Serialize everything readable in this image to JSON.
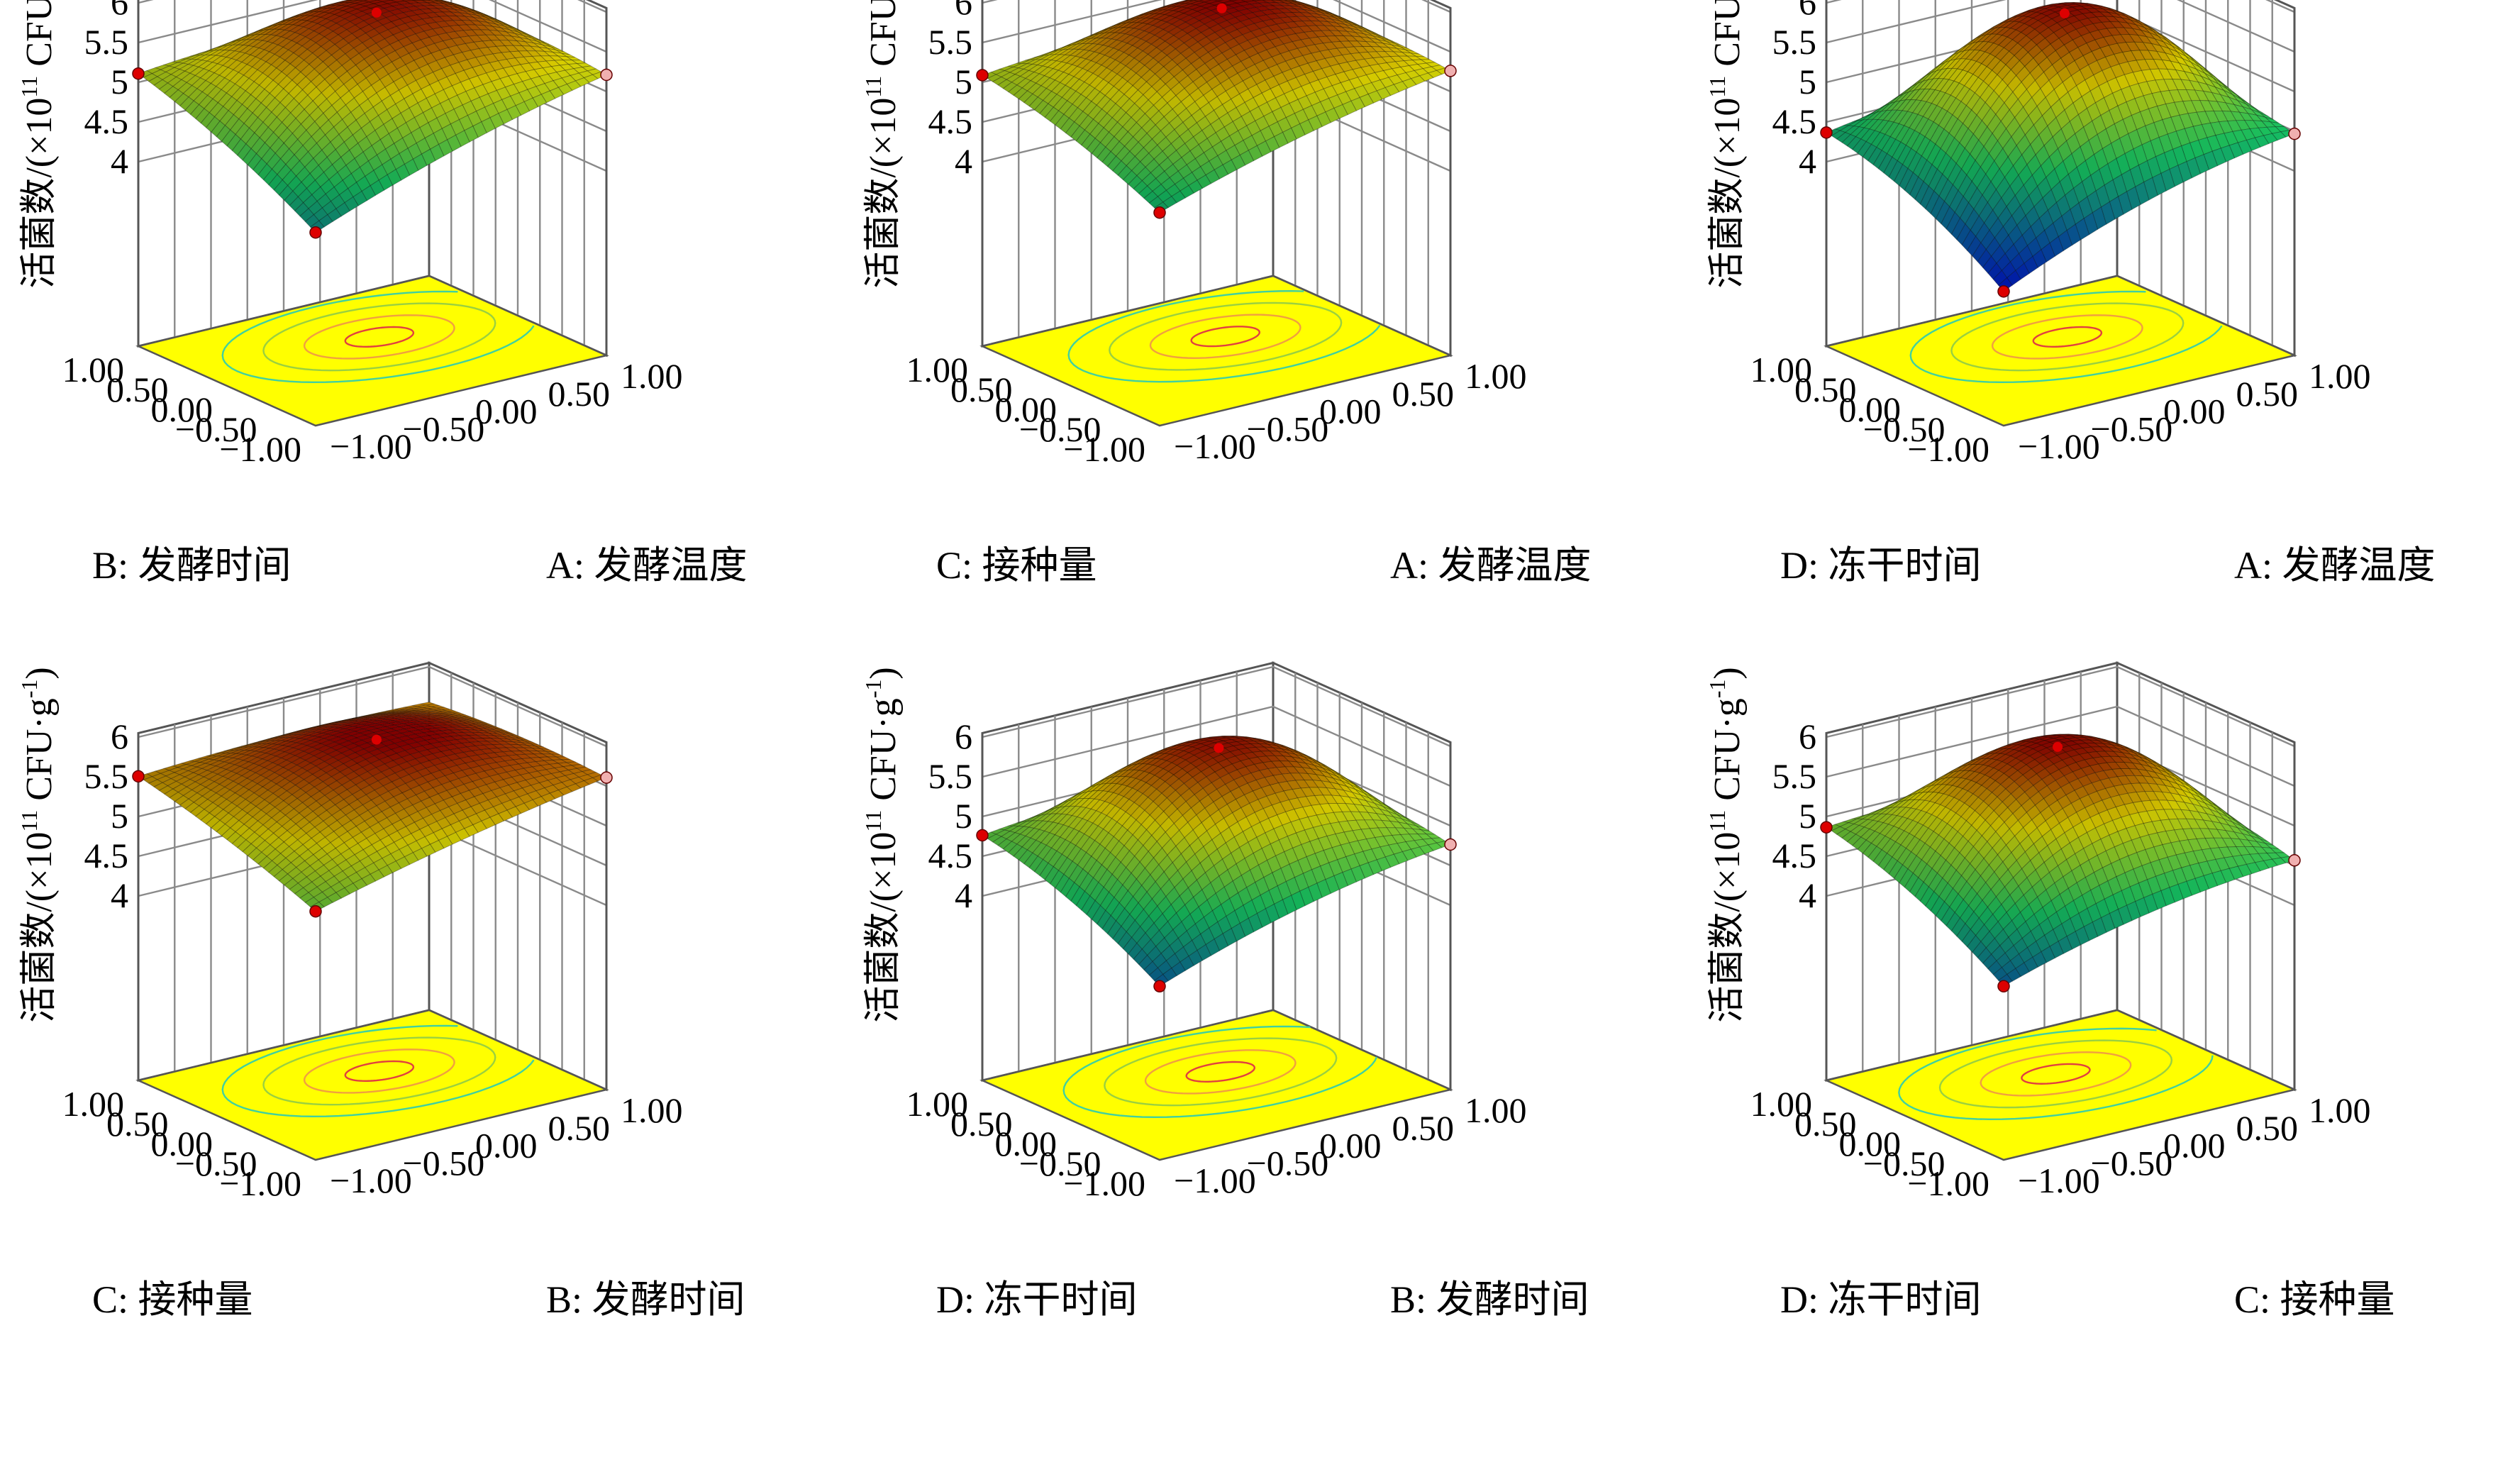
{
  "shared": {
    "z_label": "活菌数/(×10¹¹ CFU·g⁻¹)",
    "z_label_parts": {
      "main": "活菌数/(×10",
      "exp": "11",
      "after": " CFU·g",
      "exp2": "-1",
      "close": ")"
    },
    "z_ticks": [
      "4",
      "4.5",
      "5",
      "5.5",
      "6"
    ],
    "xy_ticks": [
      "−1.00",
      "−0.50",
      "0.00",
      "0.50",
      "1.00"
    ]
  },
  "colors": {
    "floor": "#ffff00",
    "surface_low": "#0018c8",
    "surface_mid": "#16c060",
    "surface_high": "#dcd000",
    "surface_top": "#8a0000",
    "marker_red": "#dd0000",
    "marker_pink": "#f0b0b0"
  },
  "chart_data": [
    {
      "type": "surface",
      "left_axis_label": "B: 发酵时间",
      "right_axis_label": "A: 发酵温度",
      "zlim": [
        4,
        6
      ],
      "range": [
        -1,
        1
      ],
      "corner_values": {
        "front": 4.1,
        "left": 5.1,
        "right": 5.2,
        "peak": 5.83
      }
    },
    {
      "type": "surface",
      "left_axis_label": "C: 接种量",
      "right_axis_label": "A: 发酵温度",
      "zlim": [
        4,
        6
      ],
      "range": [
        -1,
        1
      ],
      "corner_values": {
        "front": 4.35,
        "left": 5.08,
        "right": 5.25,
        "peak": 5.88
      }
    },
    {
      "type": "surface",
      "left_axis_label": "D: 冻干时间",
      "right_axis_label": "A: 发酵温度",
      "zlim": [
        4,
        6
      ],
      "range": [
        -1,
        1
      ],
      "corner_values": {
        "front": 3.35,
        "left": 4.35,
        "right": 4.45,
        "peak": 5.82
      }
    },
    {
      "type": "surface",
      "left_axis_label": "C: 接种量",
      "right_axis_label": "B: 发酵时间",
      "zlim": [
        4,
        6
      ],
      "range": [
        -1,
        1
      ],
      "corner_values": {
        "front": 4.8,
        "left": 5.5,
        "right": 5.6,
        "peak": 5.92
      }
    },
    {
      "type": "surface",
      "left_axis_label": "D: 冻干时间",
      "right_axis_label": "B: 发酵时间",
      "zlim": [
        4,
        6
      ],
      "range": [
        -1,
        1
      ],
      "corner_values": {
        "front": 3.85,
        "left": 4.75,
        "right": 4.75,
        "peak": 5.82
      }
    },
    {
      "type": "surface",
      "left_axis_label": "D: 冻干时间",
      "right_axis_label": "C: 接种量",
      "zlim": [
        4,
        6
      ],
      "range": [
        -1,
        1
      ],
      "corner_values": {
        "front": 3.85,
        "left": 4.85,
        "right": 4.55,
        "peak": 5.85
      }
    }
  ]
}
